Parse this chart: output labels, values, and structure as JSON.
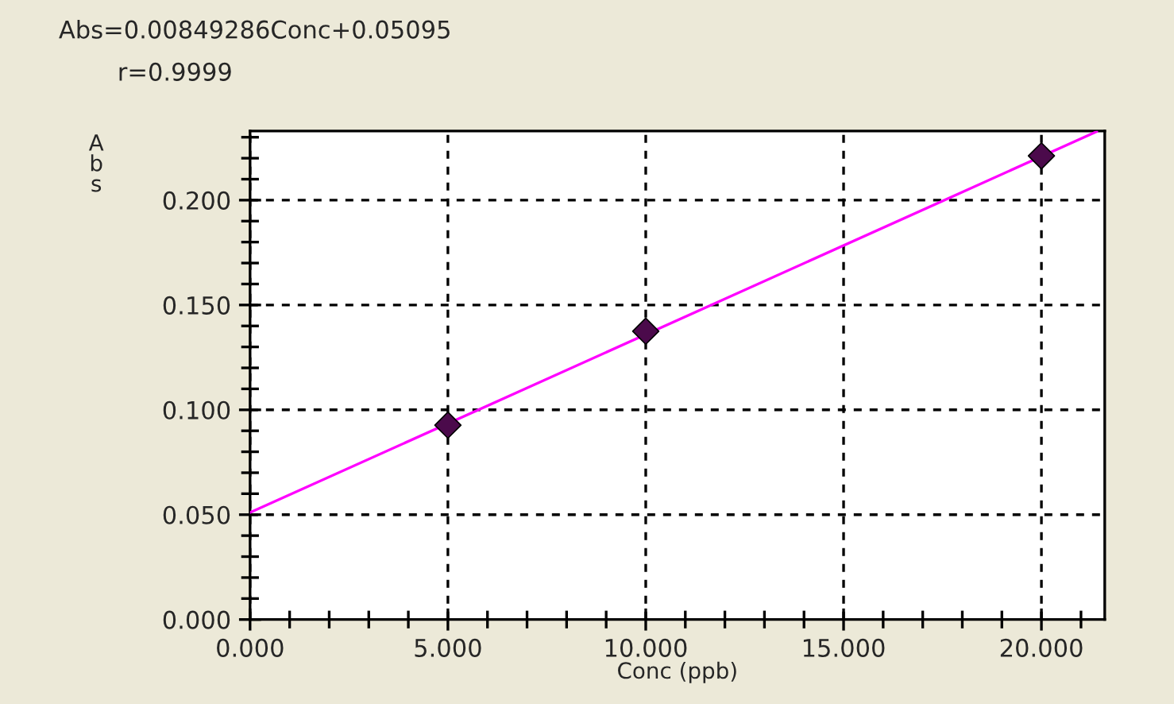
{
  "chart_data": {
    "type": "scatter",
    "annotations": [
      "Abs=0.00849286Conc+0.05095",
      "r=0.9999"
    ],
    "xlabel": "Conc (ppb)",
    "ylabel": "Abs",
    "series": [
      {
        "color": "#4b0a4b",
        "x": [
          5,
          10,
          20
        ],
        "values": [
          0.0927,
          0.1375,
          0.2211
        ],
        "marker": "diamond"
      },
      {
        "type": "line",
        "color": "#ff00ff",
        "x": [
          0,
          21.4
        ],
        "values": [
          0.051,
          0.2327
        ],
        "marker": "none",
        "line_style": "solid"
      }
    ],
    "xlim": [
      0,
      21.6
    ],
    "ylim": [
      0,
      0.233
    ],
    "xticks": [
      {
        "value": 0,
        "label": "0.000"
      },
      {
        "value": 5,
        "label": "5.000"
      },
      {
        "value": 10,
        "label": "10.000"
      },
      {
        "value": 15,
        "label": "15.000"
      },
      {
        "value": 20,
        "label": "20.000"
      }
    ],
    "yticks": [
      {
        "value": 0,
        "label": "0.000"
      },
      {
        "value": 0.05,
        "label": "0.050"
      },
      {
        "value": 0.1,
        "label": "0.100"
      },
      {
        "value": 0.15,
        "label": "0.150"
      },
      {
        "value": 0.2,
        "label": "0.200"
      }
    ],
    "grid": true,
    "legend": false
  }
}
